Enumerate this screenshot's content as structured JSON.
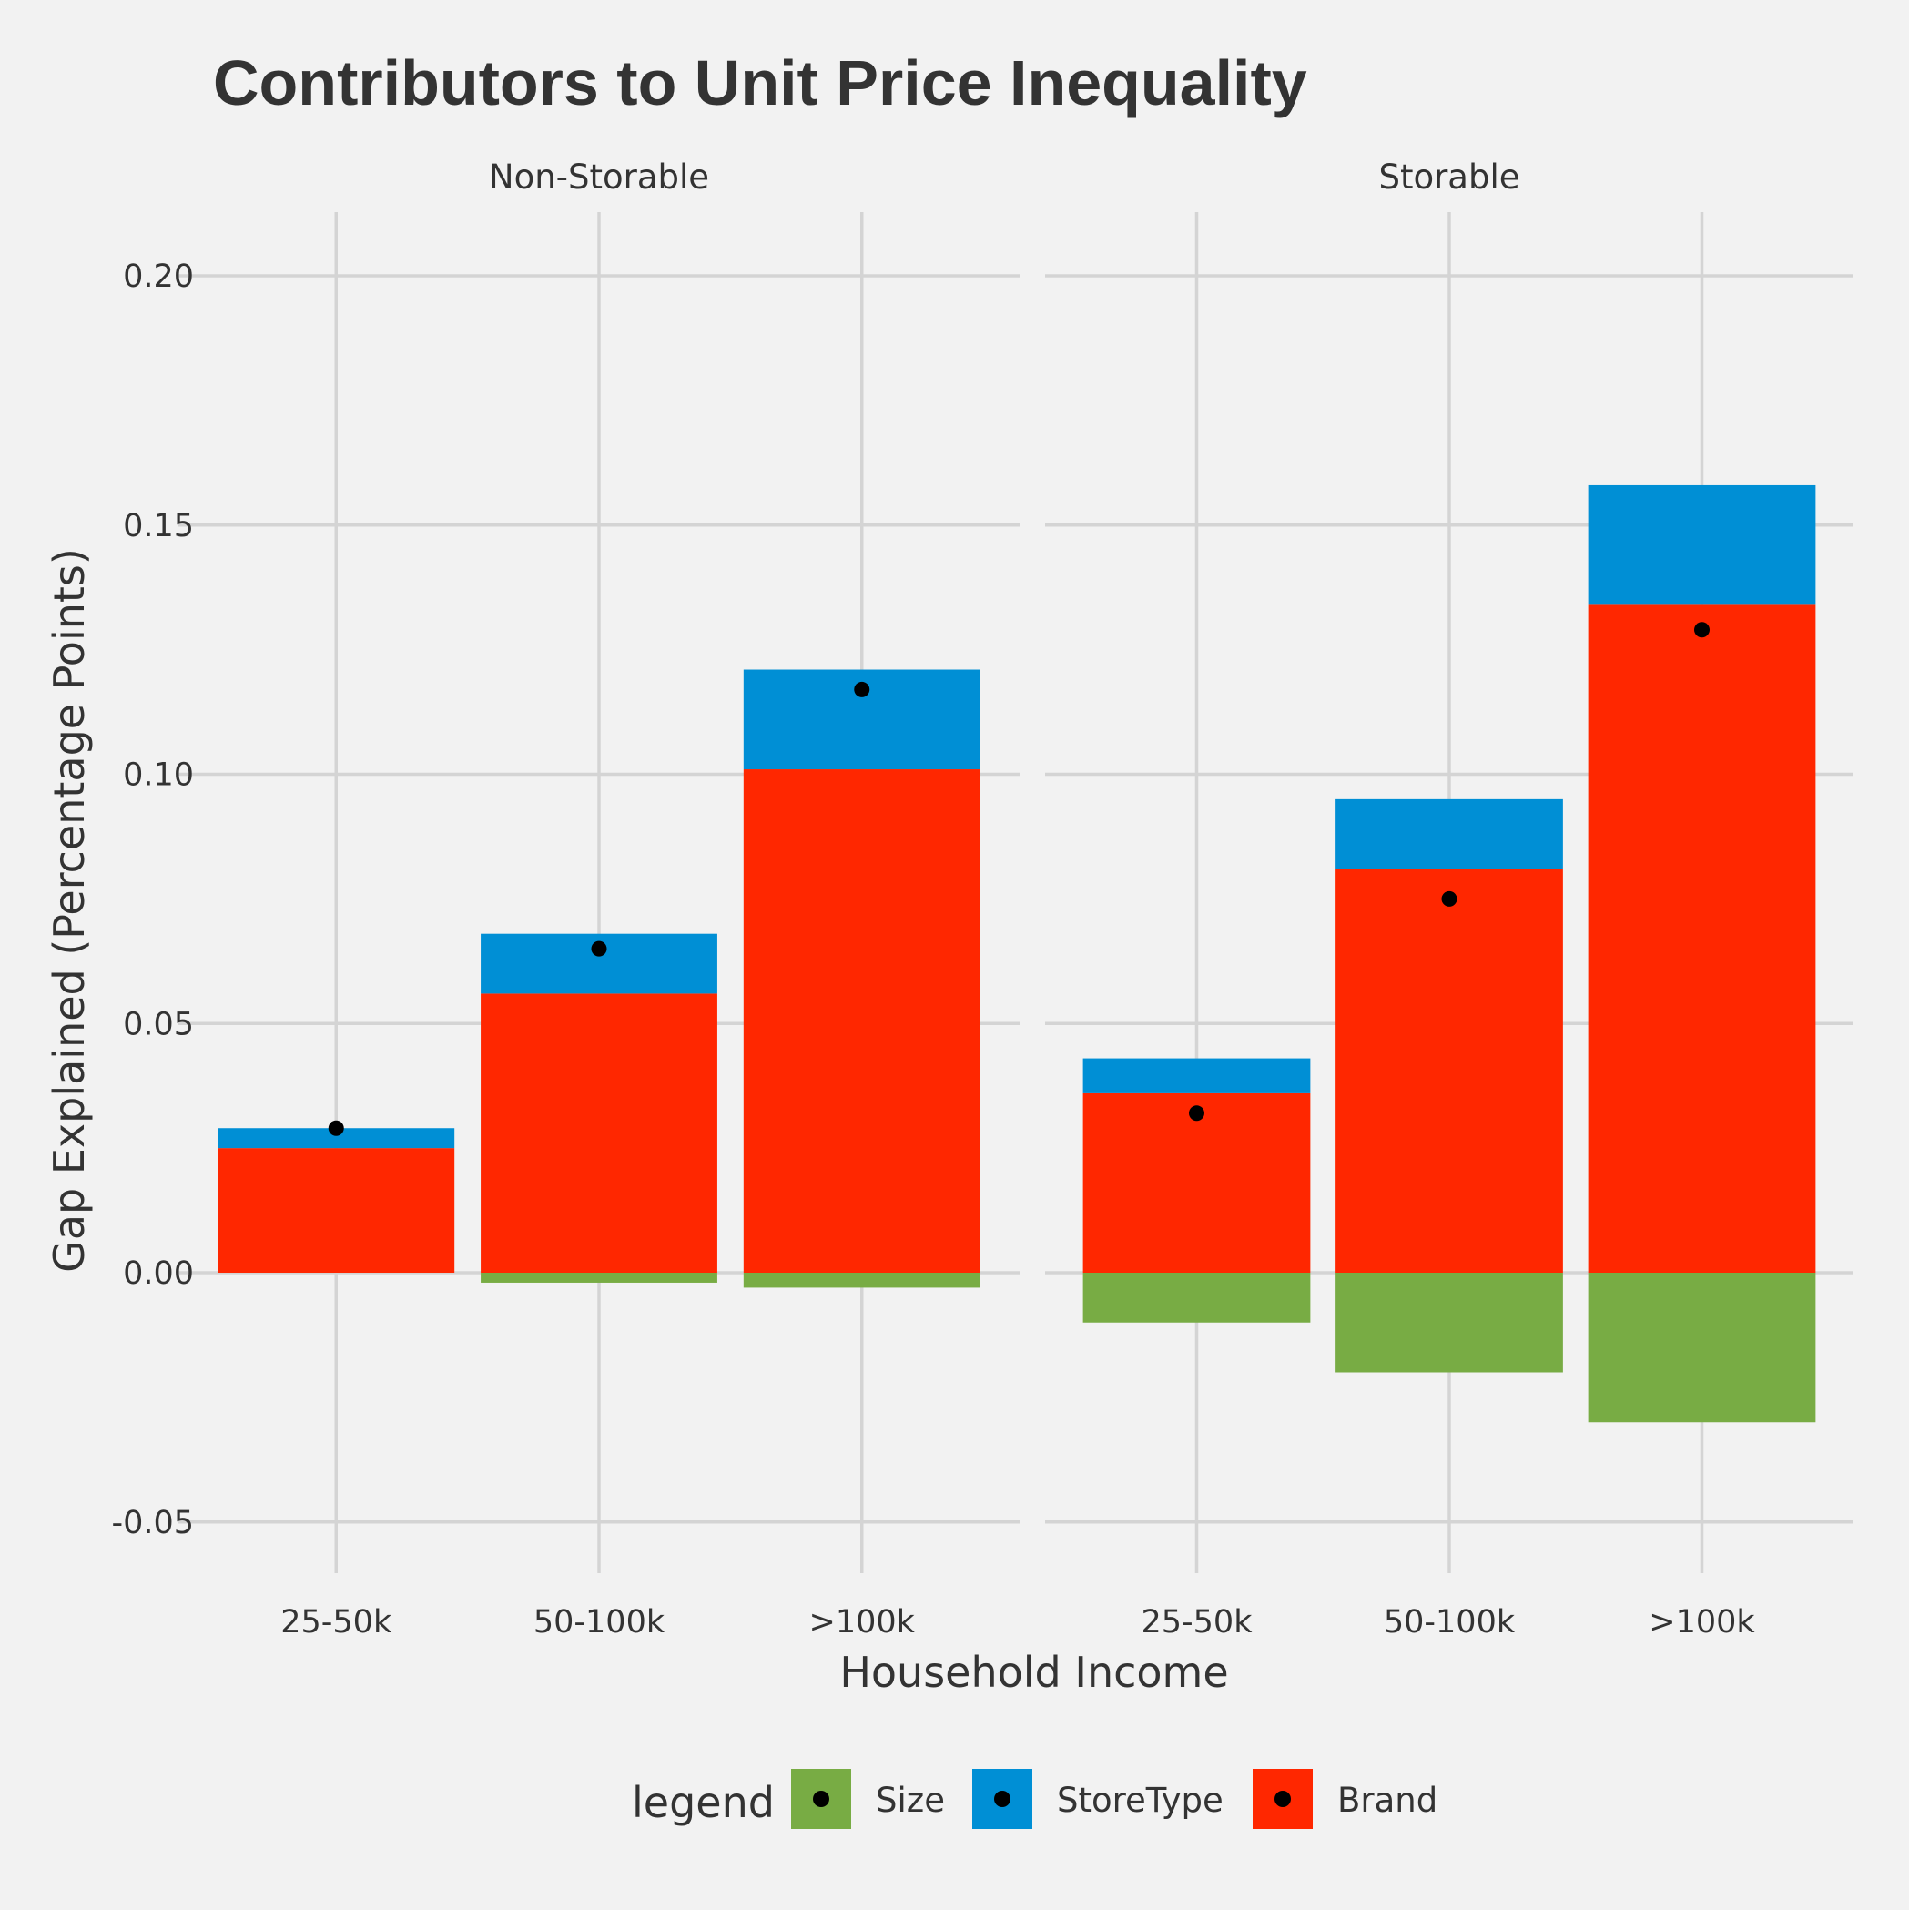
{
  "chart_data": {
    "type": "bar",
    "stacked": true,
    "title": "Contributors to Unit Price Inequality",
    "xlabel": "Household Income",
    "ylabel": "Gap Explained (Percentage Points)",
    "ylim": [
      -0.06,
      0.21
    ],
    "yticks": [
      -0.05,
      0.0,
      0.05,
      0.1,
      0.15,
      0.2
    ],
    "ytick_labels": [
      "-0.05",
      "0.00",
      "0.05",
      "0.10",
      "0.15",
      "0.20"
    ],
    "categories": [
      "25-50k",
      "50-100k",
      ">100k"
    ],
    "facets": [
      {
        "name": "Non-Storable",
        "series": [
          {
            "name": "Size",
            "values": [
              0.0,
              -0.002,
              -0.003
            ]
          },
          {
            "name": "StoreType",
            "values": [
              0.004,
              0.012,
              0.02
            ]
          },
          {
            "name": "Brand",
            "values": [
              0.025,
              0.056,
              0.101
            ]
          }
        ],
        "totals": [
          0.029,
          0.065,
          0.117
        ]
      },
      {
        "name": "Storable",
        "series": [
          {
            "name": "Size",
            "values": [
              -0.01,
              -0.02,
              -0.03
            ]
          },
          {
            "name": "StoreType",
            "values": [
              0.007,
              0.014,
              0.024
            ]
          },
          {
            "name": "Brand",
            "values": [
              0.036,
              0.081,
              0.134
            ]
          }
        ],
        "totals": [
          0.032,
          0.075,
          0.129
        ]
      }
    ],
    "legend": {
      "title": "legend",
      "position": "bottom",
      "entries": [
        "Size",
        "StoreType",
        "Brand"
      ]
    },
    "colors": {
      "Size": "#78ac44",
      "StoreType": "#008fd5",
      "Brand": "#ff2700",
      "point": "#000000"
    },
    "grid": true
  }
}
